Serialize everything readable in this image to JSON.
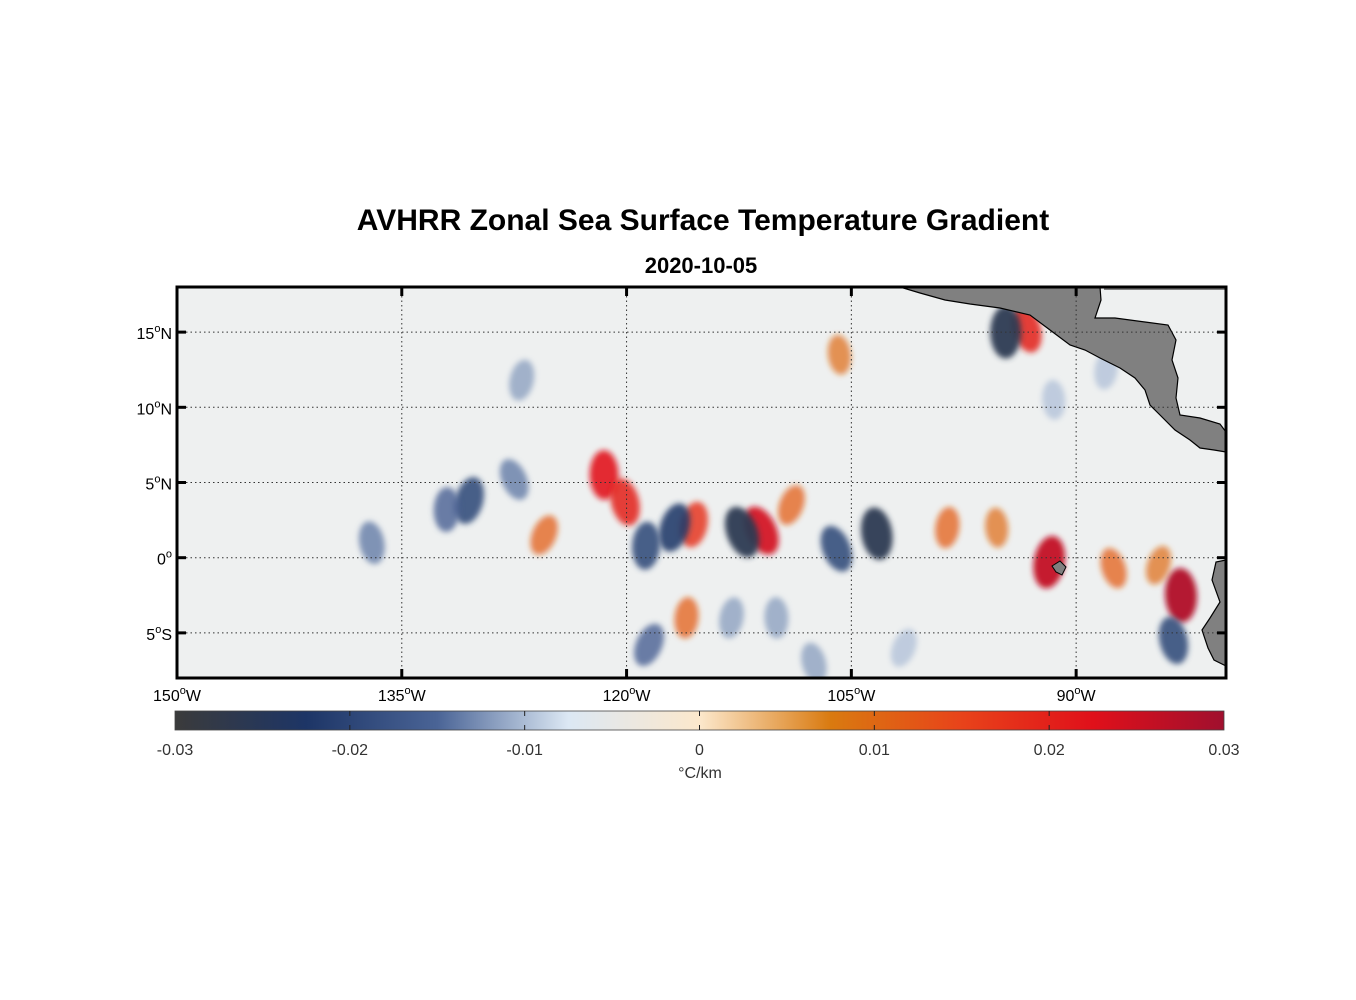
{
  "map": {
    "title": "AVHRR Zonal Sea Surface Temperature Gradient",
    "date": "2020-10-05",
    "extent": {
      "lon_min": -150,
      "lon_max": -80,
      "lat_min": -8,
      "lat_max": 18
    },
    "lon_ticks": [
      {
        "value": -150,
        "deg": "150",
        "hemi": "W"
      },
      {
        "value": -135,
        "deg": "135",
        "hemi": "W"
      },
      {
        "value": -120,
        "deg": "120",
        "hemi": "W"
      },
      {
        "value": -105,
        "deg": "105",
        "hemi": "W"
      },
      {
        "value": -90,
        "deg": "90",
        "hemi": "W"
      }
    ],
    "lat_ticks": [
      {
        "value": 15,
        "deg": "15",
        "hemi": "N"
      },
      {
        "value": 10,
        "deg": "10",
        "hemi": "N"
      },
      {
        "value": 5,
        "deg": "5",
        "hemi": "N"
      },
      {
        "value": 0,
        "deg": "0",
        "hemi": ""
      },
      {
        "value": -5,
        "deg": "5",
        "hemi": "S"
      }
    ],
    "grid": "dotted",
    "land_color": "#808080",
    "ocean_background": "#eef0f0"
  },
  "colorbar": {
    "unit": "°C/km",
    "min": -0.03,
    "max": 0.03,
    "tick_labels": [
      "-0.03",
      "-0.02",
      "-0.01",
      "0",
      "0.01",
      "0.02",
      "0.03"
    ],
    "colors": [
      "#3b3b3b",
      "#1d3566",
      "#4a6496",
      "#dce8f4",
      "#fce8cc",
      "#d97a10",
      "#e8431a",
      "#e0101a",
      "#a0102e"
    ]
  },
  "features": [
    {
      "lon": -111.0,
      "lat": 1.8,
      "value": 0.024
    },
    {
      "lon": -115.5,
      "lat": 2.2,
      "value": 0.018
    },
    {
      "lon": -121.5,
      "lat": 5.5,
      "value": 0.022
    },
    {
      "lon": -120.1,
      "lat": 3.7,
      "value": 0.02
    },
    {
      "lon": -125.5,
      "lat": 1.5,
      "value": 0.012
    },
    {
      "lon": -91.8,
      "lat": -0.3,
      "value": 0.026
    },
    {
      "lon": -83.0,
      "lat": -2.5,
      "value": 0.028
    },
    {
      "lon": -93.3,
      "lat": 15.2,
      "value": 0.02
    },
    {
      "lon": -109.0,
      "lat": 3.5,
      "value": 0.012
    },
    {
      "lon": -98.6,
      "lat": 2.0,
      "value": 0.012
    },
    {
      "lon": -95.3,
      "lat": 2.0,
      "value": 0.01
    },
    {
      "lon": -87.5,
      "lat": -0.7,
      "value": 0.012
    },
    {
      "lon": -84.5,
      "lat": -0.5,
      "value": 0.01
    },
    {
      "lon": -116.0,
      "lat": -4.0,
      "value": 0.012
    },
    {
      "lon": -105.8,
      "lat": 13.5,
      "value": 0.01
    },
    {
      "lon": -112.3,
      "lat": 1.7,
      "value": -0.026
    },
    {
      "lon": -116.8,
      "lat": 2.0,
      "value": -0.022
    },
    {
      "lon": -118.7,
      "lat": 0.8,
      "value": -0.02
    },
    {
      "lon": -103.3,
      "lat": 1.6,
      "value": -0.026
    },
    {
      "lon": -106.0,
      "lat": 0.6,
      "value": -0.02
    },
    {
      "lon": -130.5,
      "lat": 3.8,
      "value": -0.02
    },
    {
      "lon": -132.0,
      "lat": 3.2,
      "value": -0.016
    },
    {
      "lon": -137.0,
      "lat": 1.0,
      "value": -0.014
    },
    {
      "lon": -127.5,
      "lat": 5.2,
      "value": -0.014
    },
    {
      "lon": -127.0,
      "lat": 11.8,
      "value": -0.012
    },
    {
      "lon": -94.7,
      "lat": 15.0,
      "value": -0.026
    },
    {
      "lon": -83.5,
      "lat": -5.5,
      "value": -0.02
    },
    {
      "lon": -118.5,
      "lat": -5.8,
      "value": -0.016
    },
    {
      "lon": -113.0,
      "lat": -4.0,
      "value": -0.012
    },
    {
      "lon": -110.0,
      "lat": -4.0,
      "value": -0.012
    },
    {
      "lon": -107.5,
      "lat": -7.0,
      "value": -0.012
    },
    {
      "lon": -101.5,
      "lat": -6.0,
      "value": -0.01
    },
    {
      "lon": -88.0,
      "lat": 12.5,
      "value": -0.01
    },
    {
      "lon": -91.5,
      "lat": 10.5,
      "value": -0.01
    }
  ]
}
